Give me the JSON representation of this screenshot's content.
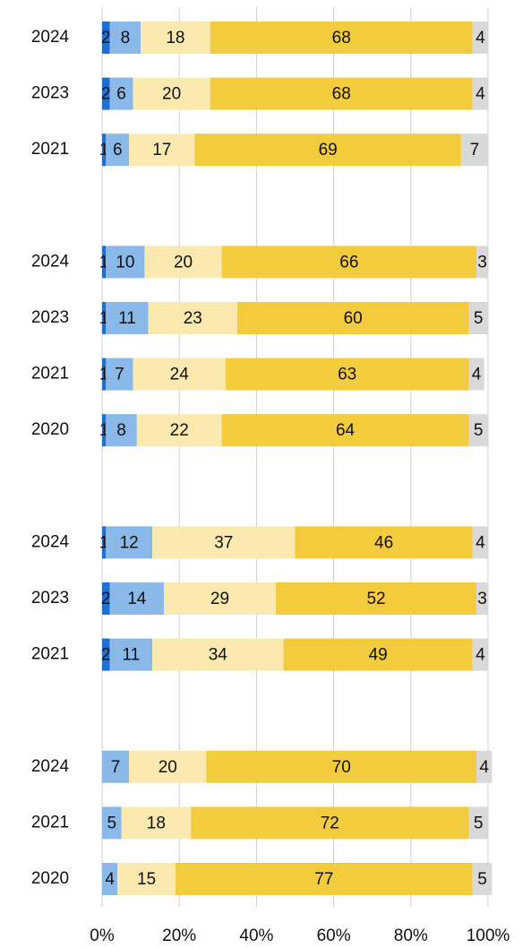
{
  "chart_data": {
    "type": "stacked-bar-horizontal",
    "categories": [
      "2024",
      "2023",
      "2021",
      null,
      "2024",
      "2023",
      "2021",
      "2020",
      null,
      "2024",
      "2023",
      "2021",
      null,
      "2024",
      "2021",
      "2020"
    ],
    "series": [
      {
        "color": "#1f6fd0",
        "values": [
          2,
          2,
          1,
          null,
          1,
          1,
          1,
          1,
          null,
          1,
          2,
          2,
          null,
          null,
          null,
          null
        ]
      },
      {
        "color": "#8ab8e8",
        "values": [
          8,
          6,
          6,
          null,
          10,
          11,
          7,
          8,
          null,
          12,
          14,
          11,
          null,
          7,
          5,
          4
        ]
      },
      {
        "color": "#fbe9b0",
        "values": [
          18,
          20,
          17,
          null,
          20,
          23,
          24,
          22,
          null,
          37,
          29,
          34,
          null,
          20,
          18,
          15
        ]
      },
      {
        "color": "#f2cc3c",
        "values": [
          68,
          68,
          69,
          null,
          66,
          60,
          63,
          64,
          null,
          46,
          52,
          49,
          null,
          70,
          72,
          77
        ]
      },
      {
        "color": "#d9d9d9",
        "values": [
          4,
          4,
          7,
          null,
          3,
          5,
          4,
          5,
          null,
          4,
          3,
          4,
          null,
          4,
          5,
          5
        ]
      }
    ],
    "xlim": [
      0,
      100
    ],
    "xticks": [
      {
        "value": 0,
        "label": "0%"
      },
      {
        "value": 20,
        "label": "20%"
      },
      {
        "value": 40,
        "label": "40%"
      },
      {
        "value": 60,
        "label": "60%"
      },
      {
        "value": 80,
        "label": "80%"
      },
      {
        "value": 100,
        "label": "100%"
      }
    ],
    "grid": true
  }
}
